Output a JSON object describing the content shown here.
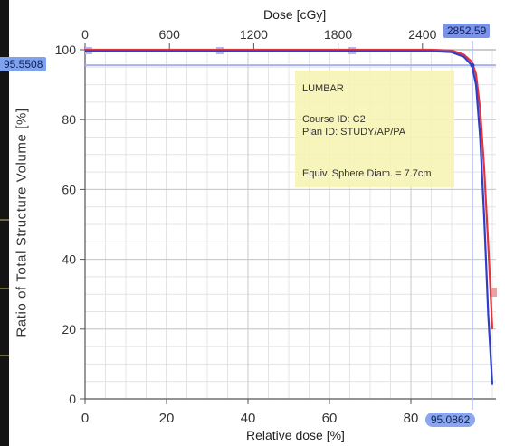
{
  "chart_data": {
    "type": "line",
    "title": "",
    "xlabel": "Relative dose [%]",
    "x2label": "Dose [cGy]",
    "ylabel": "Ratio of Total Structure Volume [%]",
    "xlim": [
      0,
      100
    ],
    "x2lim": [
      0,
      3000
    ],
    "ylim": [
      0,
      100
    ],
    "xticks": [
      0,
      20,
      40,
      60,
      80
    ],
    "x2ticks": [
      0,
      600,
      1200,
      1800,
      2400
    ],
    "yticks": [
      0,
      20,
      40,
      60,
      80,
      100
    ],
    "grid": true,
    "series": [
      {
        "color": "#e0353c",
        "points": [
          [
            0,
            100
          ],
          [
            85,
            100
          ],
          [
            90,
            99.8
          ],
          [
            93,
            98.6
          ],
          [
            95,
            96.5
          ],
          [
            96,
            93
          ],
          [
            97,
            83
          ],
          [
            98,
            66
          ],
          [
            99,
            44
          ],
          [
            100,
            20
          ]
        ]
      },
      {
        "color": "#2f3fc8",
        "points": [
          [
            0,
            99.6
          ],
          [
            85,
            99.6
          ],
          [
            90,
            99.3
          ],
          [
            93,
            98
          ],
          [
            95,
            95.5
          ],
          [
            96,
            90
          ],
          [
            97,
            75
          ],
          [
            98,
            52
          ],
          [
            99,
            24
          ],
          [
            100,
            4
          ]
        ]
      }
    ],
    "annotations": {
      "dose_cursor_label": "2852.59",
      "volume_cursor_label": "95.5508",
      "relative_dose_cursor_label": "95.0862",
      "dose_cursor": 2852.59,
      "volume_cursor": 95.5508,
      "relative_dose_cursor": 95.0862
    },
    "info_box": {
      "structure": "LUMBAR",
      "course": "Course ID: C2",
      "plan": "Plan ID: STUDY/AP/PA",
      "sphere": "Equiv. Sphere Diam. = 7.7cm"
    },
    "colors": {
      "grid": "#d6d6d6",
      "cursor": "#a7b3f0",
      "info_box": "#f6f4b2",
      "marker": "#7a93e8"
    }
  }
}
